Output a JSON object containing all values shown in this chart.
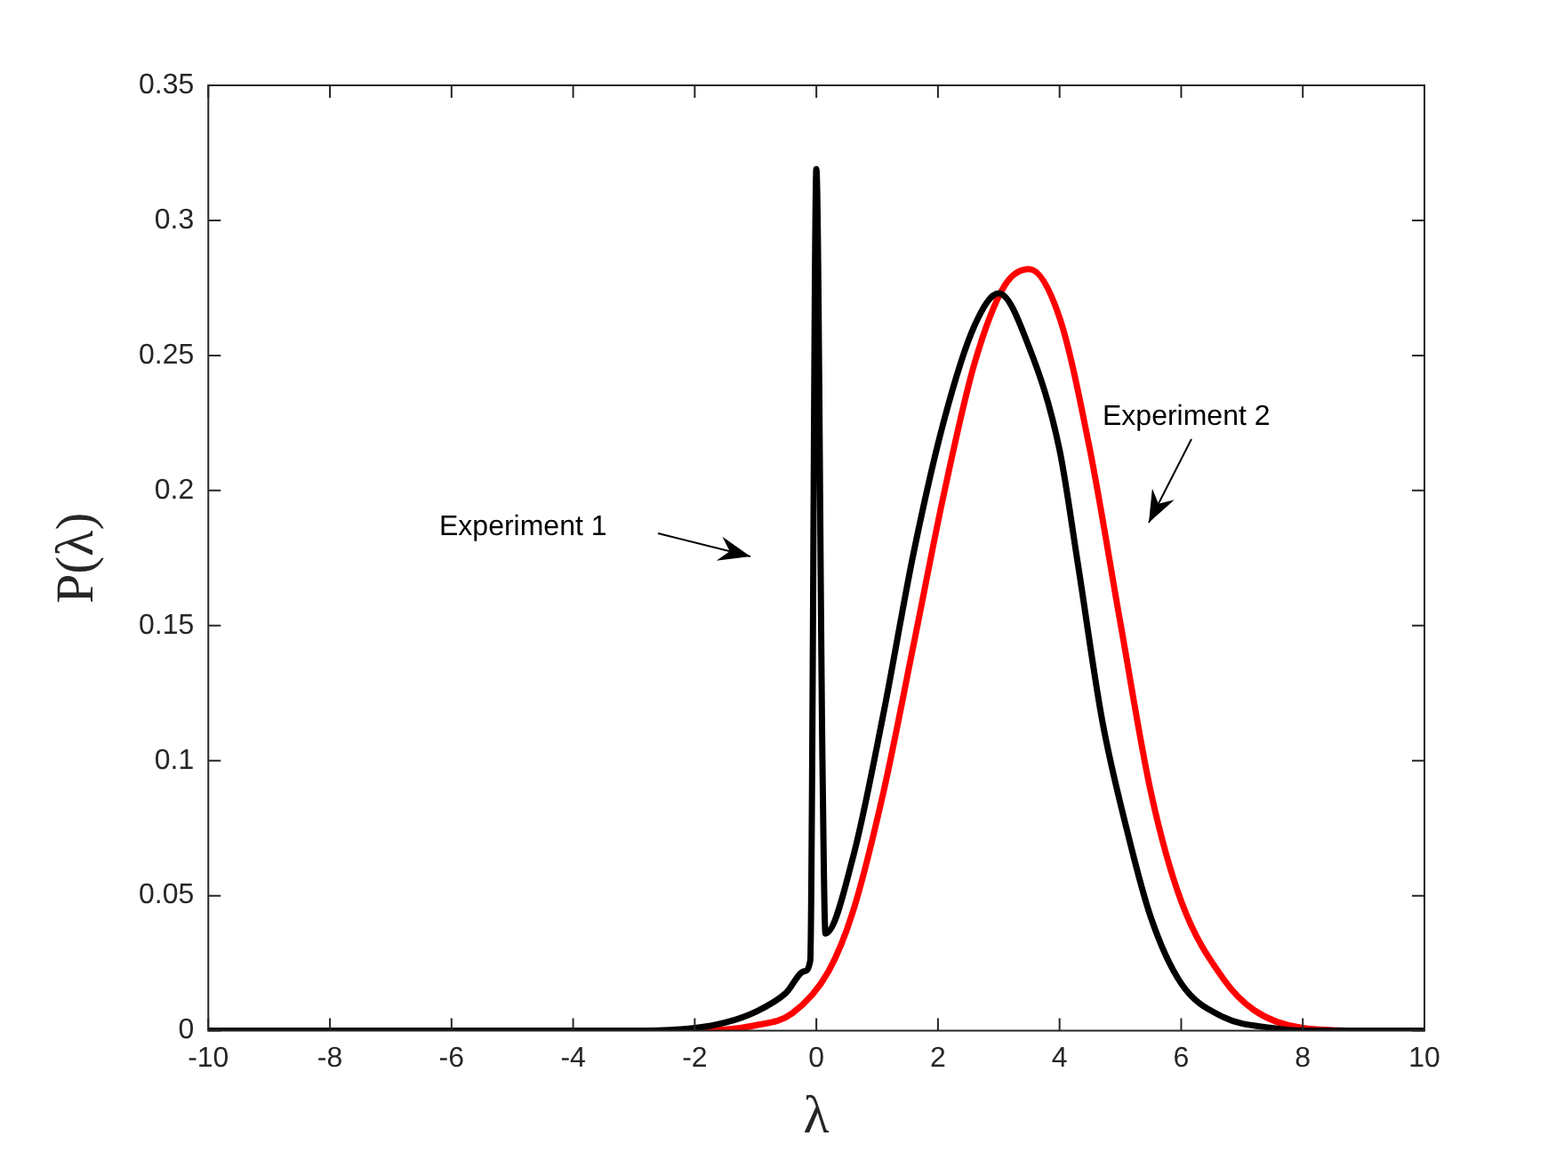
{
  "chart_data": {
    "type": "line",
    "xlabel": "λ",
    "ylabel": "P(λ)",
    "xlim": [
      -10,
      10
    ],
    "xticks": [
      -10,
      -8,
      -6,
      -4,
      -2,
      0,
      2,
      4,
      6,
      8,
      10
    ],
    "ylim": [
      0,
      0.35
    ],
    "yticks": [
      0,
      0.05,
      0.1,
      0.15,
      0.2,
      0.25,
      0.3,
      0.35
    ],
    "grid": false,
    "legend": false,
    "marker": "none",
    "line_style": "solid",
    "series": [
      {
        "color": "#000000",
        "x": [
          -10,
          -3,
          -2,
          -1.5,
          -1,
          -0.5,
          -0.2,
          -0.1,
          0,
          0.1,
          0.15,
          0.6,
          1.1,
          1.6,
          2.1,
          2.6,
          3,
          3.5,
          4,
          4.3,
          4.7,
          5.1,
          5.5,
          6,
          6.7,
          7.5,
          8,
          10
        ],
        "values": [
          0,
          0,
          0.001,
          0.003,
          0.007,
          0.014,
          0.022,
          0.026,
          0.319,
          0.1,
          0.036,
          0.064,
          0.117,
          0.177,
          0.226,
          0.261,
          0.273,
          0.253,
          0.215,
          0.173,
          0.115,
          0.075,
          0.042,
          0.0175,
          0.005,
          0.001,
          0,
          0
        ]
      },
      {
        "color": "#ff0000",
        "x": [
          -10,
          -2,
          -1,
          -0.4,
          0.2,
          0.6,
          1.1,
          1.6,
          2.1,
          2.6,
          3.1,
          3.5,
          4,
          4.5,
          5,
          5.5,
          6,
          6.7,
          7.2,
          8,
          9,
          10
        ],
        "values": [
          0,
          0,
          0.002,
          0.0064,
          0.022,
          0.044,
          0.088,
          0.143,
          0.199,
          0.247,
          0.276,
          0.282,
          0.264,
          0.215,
          0.151,
          0.0885,
          0.048,
          0.019,
          0.0076,
          0.001,
          0,
          0
        ]
      }
    ],
    "annotations": [
      "Experiment 1",
      "Experiment 2"
    ]
  }
}
